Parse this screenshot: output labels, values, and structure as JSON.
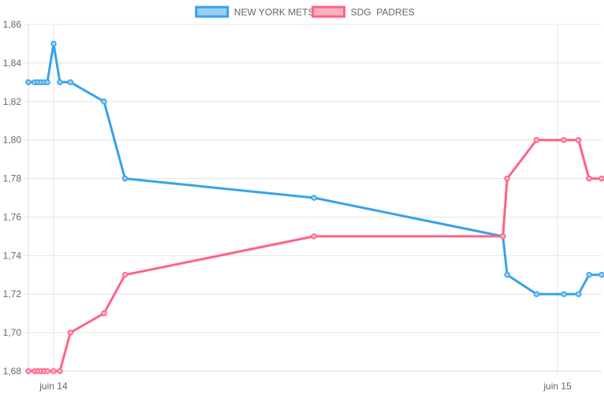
{
  "chart_data": {
    "type": "line",
    "x_unit": "hour",
    "x_tick_labels": [
      {
        "x": 0,
        "label": "juin 14"
      },
      {
        "x": 24,
        "label": "juin 15"
      }
    ],
    "ylim": [
      1.68,
      1.86
    ],
    "y_ticks": [
      1.68,
      1.7,
      1.72,
      1.74,
      1.76,
      1.78,
      1.8,
      1.82,
      1.84,
      1.86
    ],
    "y_tick_labels": [
      "1,68",
      "1,70",
      "1,72",
      "1,74",
      "1,76",
      "1,78",
      "1,80",
      "1,82",
      "1,84",
      "1,86"
    ],
    "xlim": [
      -1.2,
      26.1
    ],
    "grid": true,
    "legend": "top-center",
    "series": [
      {
        "name": "NEW YORK METS",
        "color": "#36a2eb",
        "fill": "#9ad0f5",
        "points": [
          {
            "x": -1.2,
            "y": 1.83
          },
          {
            "x": -0.9,
            "y": 1.83
          },
          {
            "x": -0.75,
            "y": 1.83
          },
          {
            "x": -0.6,
            "y": 1.83
          },
          {
            "x": -0.45,
            "y": 1.83
          },
          {
            "x": -0.3,
            "y": 1.83
          },
          {
            "x": 0.0,
            "y": 1.85
          },
          {
            "x": 0.3,
            "y": 1.83
          },
          {
            "x": 0.8,
            "y": 1.83
          },
          {
            "x": 2.4,
            "y": 1.82
          },
          {
            "x": 3.4,
            "y": 1.78
          },
          {
            "x": 12.4,
            "y": 1.77
          },
          {
            "x": 21.4,
            "y": 1.75
          },
          {
            "x": 21.6,
            "y": 1.73
          },
          {
            "x": 23.0,
            "y": 1.72
          },
          {
            "x": 24.3,
            "y": 1.72
          },
          {
            "x": 25.0,
            "y": 1.72
          },
          {
            "x": 25.5,
            "y": 1.73
          },
          {
            "x": 26.1,
            "y": 1.73
          }
        ]
      },
      {
        "name": "SDG  PADRES",
        "color": "#ff6384",
        "fill": "#ffb1c1",
        "points": [
          {
            "x": -1.2,
            "y": 1.68
          },
          {
            "x": -0.9,
            "y": 1.68
          },
          {
            "x": -0.75,
            "y": 1.68
          },
          {
            "x": -0.6,
            "y": 1.68
          },
          {
            "x": -0.45,
            "y": 1.68
          },
          {
            "x": -0.3,
            "y": 1.68
          },
          {
            "x": 0.0,
            "y": 1.68
          },
          {
            "x": 0.3,
            "y": 1.68
          },
          {
            "x": 0.8,
            "y": 1.7
          },
          {
            "x": 2.4,
            "y": 1.71
          },
          {
            "x": 3.4,
            "y": 1.73
          },
          {
            "x": 12.4,
            "y": 1.75
          },
          {
            "x": 21.4,
            "y": 1.75
          },
          {
            "x": 21.6,
            "y": 1.78
          },
          {
            "x": 23.0,
            "y": 1.8
          },
          {
            "x": 24.3,
            "y": 1.8
          },
          {
            "x": 25.0,
            "y": 1.8
          },
          {
            "x": 25.5,
            "y": 1.78
          },
          {
            "x": 26.1,
            "y": 1.78
          }
        ]
      }
    ]
  }
}
